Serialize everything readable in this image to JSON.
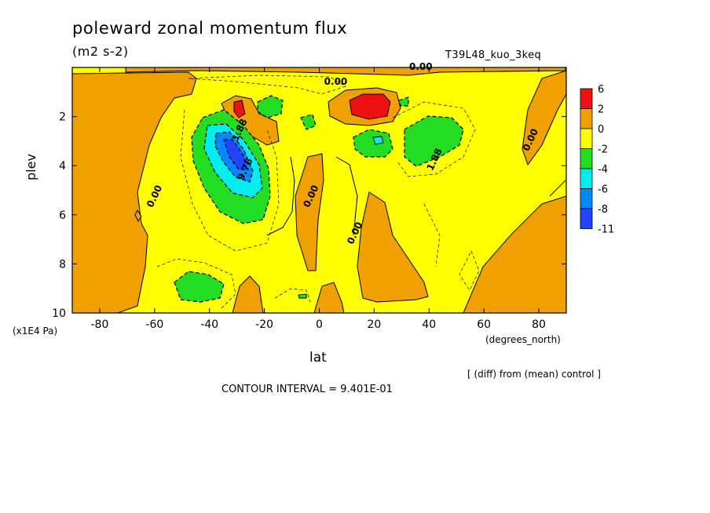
{
  "header": {
    "title": "poleward zonal momentum flux",
    "units": "(m2 s-2)",
    "run_id": "T39L48_kuo_3keq"
  },
  "footer": {
    "diff_note": "[ (diff) from (mean) control ]",
    "contour_interval": "CONTOUR INTERVAL = 9.401E-01"
  },
  "colors": {
    "red": "#ee1111",
    "orange": "#f0a000",
    "yellow": "#ffff00",
    "green": "#22dd22",
    "cyan": "#00eeee",
    "blue": "#0088ff",
    "darkblue": "#2244ff"
  },
  "chart_data": {
    "type": "heatmap",
    "title": "poleward zonal momentum flux",
    "xlabel": "lat",
    "xunit": "(degrees_north)",
    "ylabel": "plev",
    "yunit": "(x1E4 Pa)",
    "xlim": [
      -90,
      90
    ],
    "ylim": [
      10,
      0
    ],
    "xticks": [
      -80,
      -60,
      -40,
      -20,
      0,
      20,
      40,
      60,
      80
    ],
    "yticks": [
      2,
      4,
      6,
      8,
      10
    ],
    "colorbar": {
      "labels": [
        "6",
        "2",
        "0",
        "-2",
        "-4",
        "-6",
        "-8",
        "-11"
      ],
      "colors": [
        "#ee1111",
        "#f0a000",
        "#ffff00",
        "#22dd22",
        "#00eeee",
        "#0088ff",
        "#2244ff"
      ]
    },
    "contour_labels": [
      {
        "text": "0.00",
        "lat": 6,
        "plev": 0.7
      },
      {
        "text": "0.00",
        "lat": 37,
        "plev": 0.1
      },
      {
        "text": "0.00",
        "lat": 78,
        "plev": 3
      },
      {
        "text": "0.00",
        "lat": -59,
        "plev": 5.3
      },
      {
        "text": "0.00",
        "lat": -2,
        "plev": 5.3
      },
      {
        "text": "0.00",
        "lat": 14,
        "plev": 6.8
      },
      {
        "text": "1.88",
        "lat": 43,
        "plev": 3.8
      },
      {
        "text": "1.88",
        "lat": -28,
        "plev": 2.6
      },
      {
        "text": "9.76",
        "lat": -26,
        "plev": 4.2
      }
    ],
    "regions": [
      {
        "sign": "positive",
        "max": 6,
        "lat": 18,
        "plev": 1.5
      },
      {
        "sign": "negative",
        "min": -11,
        "lat": -30,
        "plev": 3.8
      },
      {
        "sign": "negative",
        "min": -4,
        "lat": 42,
        "plev": 3.2
      },
      {
        "sign": "negative",
        "min": -4,
        "lat": 22,
        "plev": 3.2
      },
      {
        "sign": "negative",
        "min": -4,
        "lat": -17,
        "plev": 1.5
      },
      {
        "sign": "negative",
        "min": -4,
        "lat": -41,
        "plev": 9.2
      }
    ]
  }
}
